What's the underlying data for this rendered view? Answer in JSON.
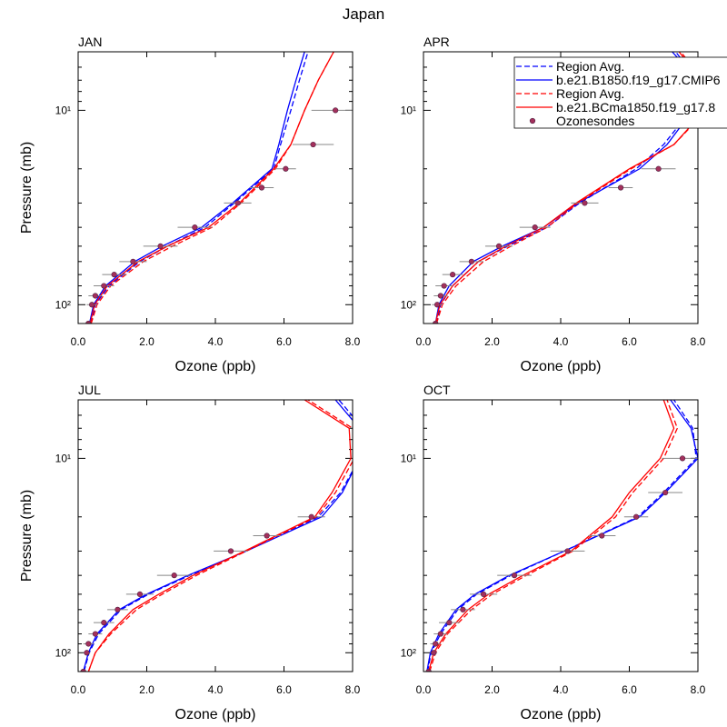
{
  "title": "Japan",
  "chart_data": [
    {
      "type": "line",
      "title": "JAN",
      "x_label": "Ozone (ppb)",
      "y_label": "Pressure (mb)",
      "y_log": true,
      "xlim": [
        0,
        8
      ],
      "xticks": [
        {
          "value": 0,
          "label": "0.0"
        },
        {
          "value": 2,
          "label": "2.0"
        },
        {
          "value": 4,
          "label": "4.0"
        },
        {
          "value": 6,
          "label": "6.0"
        },
        {
          "value": 8,
          "label": "8.0"
        }
      ],
      "ylim": [
        125,
        5
      ],
      "yticks": [
        {
          "value": 10,
          "label": "10¹"
        },
        {
          "value": 100,
          "label": "10²"
        }
      ],
      "yminorticks": [
        5,
        6,
        7,
        8,
        9,
        20,
        30,
        40,
        50,
        60,
        70,
        80,
        90
      ],
      "series": [
        {
          "color": "#0000ff",
          "dash": true,
          "x": [
            0.37,
            0.5,
            0.9,
            1.8,
            2.6,
            3.7,
            4.55,
            5.7,
            5.9,
            6.2,
            6.45,
            6.7
          ],
          "y": [
            125,
            100,
            80,
            60,
            50,
            40,
            30,
            20,
            15,
            10,
            7,
            5
          ]
        },
        {
          "color": "#0000ff",
          "dash": false,
          "x": [
            0.33,
            0.45,
            0.8,
            1.65,
            2.45,
            3.6,
            4.5,
            5.65,
            5.85,
            6.1,
            6.35,
            6.6
          ],
          "y": [
            125,
            100,
            80,
            60,
            50,
            40,
            30,
            20,
            15,
            10,
            7,
            5
          ]
        },
        {
          "color": "#ff0000",
          "dash": true,
          "x": [
            0.38,
            0.55,
            0.95,
            1.9,
            2.75,
            3.9,
            4.75,
            5.75,
            6.2,
            6.6,
            7.0,
            7.45
          ],
          "y": [
            125,
            100,
            80,
            60,
            50,
            40,
            30,
            20,
            15,
            10,
            7,
            5
          ]
        },
        {
          "color": "#ff0000",
          "dash": false,
          "x": [
            0.35,
            0.48,
            0.85,
            1.75,
            2.6,
            3.8,
            4.7,
            5.7,
            6.2,
            6.6,
            7.0,
            7.45
          ],
          "y": [
            125,
            100,
            80,
            60,
            50,
            40,
            30,
            20,
            15,
            10,
            7,
            5
          ]
        },
        {
          "type": "scatter",
          "color": "#a3305c",
          "x": [
            0.3,
            0.4,
            0.5,
            0.75,
            1.05,
            1.6,
            2.4,
            3.4,
            4.65,
            5.35,
            6.05,
            6.85,
            7.5
          ],
          "xerr": [
            0.1,
            0.15,
            0.2,
            0.3,
            0.35,
            0.4,
            0.5,
            0.5,
            0.4,
            0.35,
            0.3,
            0.6,
            0.7
          ],
          "y": [
            125,
            100,
            90,
            80,
            70,
            60,
            50,
            40,
            30,
            25,
            20,
            15,
            10
          ]
        }
      ]
    },
    {
      "type": "line",
      "title": "APR",
      "x_label": "Ozone (ppb)",
      "y_log": true,
      "legend": "upper right",
      "xlim": [
        0,
        8
      ],
      "xticks": [
        {
          "value": 0,
          "label": "0.0"
        },
        {
          "value": 2,
          "label": "2.0"
        },
        {
          "value": 4,
          "label": "4.0"
        },
        {
          "value": 6,
          "label": "6.0"
        },
        {
          "value": 8,
          "label": "8.0"
        }
      ],
      "ylim": [
        125,
        5
      ],
      "yticks": [
        {
          "value": 10,
          "label": "10¹"
        },
        {
          "value": 100,
          "label": "10²"
        }
      ],
      "yminorticks": [
        5,
        6,
        7,
        8,
        9,
        20,
        30,
        40,
        50,
        60,
        70,
        80,
        90
      ],
      "series": [
        {
          "name": "Region Avg.",
          "color": "#0000ff",
          "dash": true,
          "x": [
            0.38,
            0.5,
            0.85,
            1.6,
            2.45,
            3.6,
            4.55,
            6.2,
            7.0,
            7.8,
            8.0,
            7.35
          ],
          "y": [
            125,
            100,
            80,
            60,
            50,
            40,
            30,
            20,
            15,
            10,
            7,
            5
          ]
        },
        {
          "name": "b.e21.B1850.f19_g17.CMIP6",
          "color": "#0000ff",
          "dash": false,
          "x": [
            0.35,
            0.45,
            0.75,
            1.45,
            2.3,
            3.5,
            4.5,
            6.3,
            7.1,
            7.85,
            8.0,
            7.25
          ],
          "y": [
            125,
            100,
            80,
            60,
            50,
            40,
            30,
            20,
            15,
            10,
            7,
            5
          ]
        },
        {
          "name": "Region Avg.",
          "color": "#ff0000",
          "dash": true,
          "x": [
            0.38,
            0.55,
            0.95,
            1.75,
            2.55,
            3.6,
            4.5,
            6.05,
            7.3,
            8.25,
            8.15,
            7.5
          ],
          "y": [
            125,
            100,
            80,
            60,
            50,
            40,
            30,
            20,
            15,
            10,
            7,
            5
          ]
        },
        {
          "name": "b.e21.BCma1850.f19_g17.8",
          "color": "#ff0000",
          "dash": false,
          "x": [
            0.35,
            0.48,
            0.85,
            1.6,
            2.4,
            3.5,
            4.45,
            6.0,
            7.3,
            8.2,
            8.1,
            7.45
          ],
          "y": [
            125,
            100,
            80,
            60,
            50,
            40,
            30,
            20,
            15,
            10,
            7,
            5
          ]
        },
        {
          "name": "Ozonesondes",
          "type": "scatter",
          "color": "#a3305c",
          "x": [
            0.35,
            0.4,
            0.5,
            0.6,
            0.85,
            1.4,
            2.2,
            3.25,
            4.7,
            5.75,
            6.85,
            null,
            null
          ],
          "xerr": [
            0.1,
            0.15,
            0.2,
            0.25,
            0.3,
            0.35,
            0.4,
            0.45,
            0.4,
            0.35,
            0.5,
            null,
            null
          ],
          "y": [
            125,
            100,
            90,
            80,
            70,
            60,
            50,
            40,
            30,
            25,
            20,
            15,
            10
          ]
        }
      ]
    },
    {
      "type": "line",
      "title": "JUL",
      "x_label": "Ozone (ppb)",
      "y_label": "Pressure (mb)",
      "y_log": true,
      "xlim": [
        0,
        8
      ],
      "xticks": [
        {
          "value": 0,
          "label": "0.0"
        },
        {
          "value": 2,
          "label": "2.0"
        },
        {
          "value": 4,
          "label": "4.0"
        },
        {
          "value": 6,
          "label": "6.0"
        },
        {
          "value": 8,
          "label": "8.0"
        }
      ],
      "ylim": [
        125,
        5
      ],
      "yticks": [
        {
          "value": 10,
          "label": "10¹"
        },
        {
          "value": 100,
          "label": "10²"
        }
      ],
      "yminorticks": [
        5,
        6,
        7,
        8,
        9,
        20,
        30,
        40,
        50,
        60,
        70,
        80,
        90
      ],
      "series": [
        {
          "color": "#0000ff",
          "dash": true,
          "x": [
            0.17,
            0.32,
            0.6,
            1.25,
            2.05,
            3.25,
            4.9,
            7.0,
            7.65,
            8.2,
            8.3,
            7.6
          ],
          "y": [
            125,
            100,
            80,
            60,
            50,
            40,
            30,
            20,
            15,
            10,
            7,
            5
          ]
        },
        {
          "color": "#0000ff",
          "dash": false,
          "x": [
            0.15,
            0.3,
            0.55,
            1.2,
            2.0,
            3.2,
            4.9,
            7.1,
            7.7,
            8.2,
            8.2,
            7.5
          ],
          "y": [
            125,
            100,
            80,
            60,
            50,
            40,
            30,
            20,
            15,
            10,
            7,
            5
          ]
        },
        {
          "color": "#ff0000",
          "dash": true,
          "x": [
            0.3,
            0.5,
            0.95,
            1.7,
            2.45,
            3.45,
            4.9,
            6.95,
            7.5,
            8.05,
            8.0,
            6.7
          ],
          "y": [
            125,
            100,
            80,
            60,
            50,
            40,
            30,
            20,
            15,
            10,
            7,
            5
          ]
        },
        {
          "color": "#ff0000",
          "dash": false,
          "x": [
            0.3,
            0.5,
            0.9,
            1.6,
            2.35,
            3.35,
            4.85,
            6.9,
            7.4,
            7.95,
            7.9,
            6.6
          ],
          "y": [
            125,
            100,
            80,
            60,
            50,
            40,
            30,
            20,
            15,
            10,
            7,
            5
          ]
        },
        {
          "type": "scatter",
          "color": "#a3305c",
          "x": [
            0.15,
            0.25,
            0.3,
            0.5,
            0.75,
            1.15,
            1.8,
            2.8,
            4.45,
            5.5,
            6.8,
            null,
            null
          ],
          "xerr": [
            0.1,
            0.1,
            0.15,
            0.2,
            0.3,
            0.3,
            0.4,
            0.5,
            0.5,
            0.4,
            0.4,
            null,
            null
          ],
          "y": [
            125,
            100,
            90,
            80,
            70,
            60,
            50,
            40,
            30,
            25,
            20,
            15,
            10
          ]
        }
      ]
    },
    {
      "type": "line",
      "title": "OCT",
      "x_label": "Ozone (ppb)",
      "y_log": true,
      "xlim": [
        0,
        8
      ],
      "xticks": [
        {
          "value": 0,
          "label": "0.0"
        },
        {
          "value": 2,
          "label": "2.0"
        },
        {
          "value": 4,
          "label": "4.0"
        },
        {
          "value": 6,
          "label": "6.0"
        },
        {
          "value": 8,
          "label": "8.0"
        }
      ],
      "ylim": [
        125,
        5
      ],
      "yticks": [
        {
          "value": 10,
          "label": "10¹"
        },
        {
          "value": 100,
          "label": "10²"
        }
      ],
      "yminorticks": [
        5,
        6,
        7,
        8,
        9,
        20,
        30,
        40,
        50,
        60,
        70,
        80,
        90
      ],
      "series": [
        {
          "color": "#0000ff",
          "dash": true,
          "x": [
            0.12,
            0.22,
            0.5,
            1.0,
            1.55,
            2.55,
            4.1,
            6.25,
            7.0,
            7.95,
            7.85,
            7.3
          ],
          "y": [
            125,
            100,
            80,
            60,
            50,
            40,
            30,
            20,
            15,
            10,
            7,
            5
          ]
        },
        {
          "color": "#0000ff",
          "dash": false,
          "x": [
            0.1,
            0.2,
            0.45,
            0.95,
            1.5,
            2.5,
            4.1,
            6.3,
            7.05,
            8.0,
            7.8,
            7.2
          ],
          "y": [
            125,
            100,
            80,
            60,
            50,
            40,
            30,
            20,
            15,
            10,
            7,
            5
          ]
        },
        {
          "color": "#ff0000",
          "dash": true,
          "x": [
            0.18,
            0.35,
            0.7,
            1.4,
            2.0,
            3.0,
            4.35,
            5.6,
            6.1,
            7.0,
            7.4,
            7.1
          ],
          "y": [
            125,
            100,
            80,
            60,
            50,
            40,
            30,
            20,
            15,
            10,
            7,
            5
          ]
        },
        {
          "color": "#ff0000",
          "dash": false,
          "x": [
            0.15,
            0.3,
            0.65,
            1.3,
            1.9,
            2.9,
            4.3,
            5.5,
            6.0,
            6.9,
            7.3,
            7.0
          ],
          "y": [
            125,
            100,
            80,
            60,
            50,
            40,
            30,
            20,
            15,
            10,
            7,
            5
          ]
        },
        {
          "type": "scatter",
          "color": "#a3305c",
          "x": [
            0.15,
            0.3,
            0.35,
            0.5,
            0.75,
            1.15,
            1.75,
            2.65,
            4.2,
            5.2,
            6.2,
            7.05,
            7.55
          ],
          "xerr": [
            0.1,
            0.1,
            0.15,
            0.2,
            0.3,
            0.35,
            0.4,
            0.5,
            0.5,
            0.4,
            0.35,
            0.5,
            0.6
          ],
          "y": [
            125,
            100,
            90,
            80,
            70,
            60,
            50,
            40,
            30,
            25,
            20,
            15,
            10
          ]
        }
      ]
    }
  ]
}
